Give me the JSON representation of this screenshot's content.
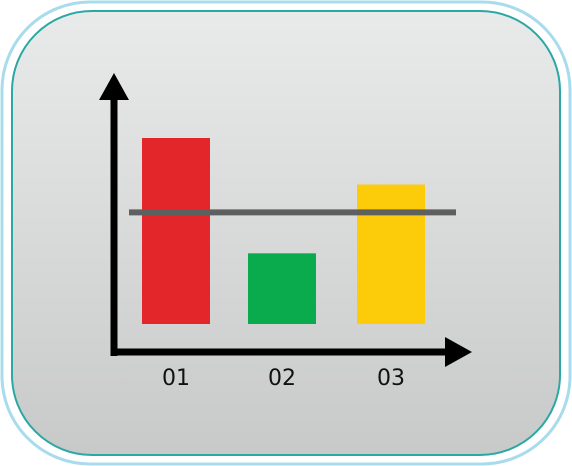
{
  "chart_data": {
    "type": "bar",
    "categories": [
      "01",
      "02",
      "03"
    ],
    "values": [
      100,
      38,
      75
    ],
    "reference_line": 60,
    "ylim": [
      0,
      125
    ],
    "title": "",
    "xlabel": "",
    "ylabel": "",
    "grid": false,
    "bar_colors": [
      "#e3262a",
      "#0aab4c",
      "#fccc0a"
    ],
    "reference_line_color": "#5f5f5f",
    "axis_color": "#000000"
  },
  "colors": {
    "tile_background_top": "#e9eaea",
    "tile_background_bottom": "#c8c9c9",
    "tile_border_inner": "#2aa8a4",
    "tile_border_outer": "#a8dcec"
  }
}
